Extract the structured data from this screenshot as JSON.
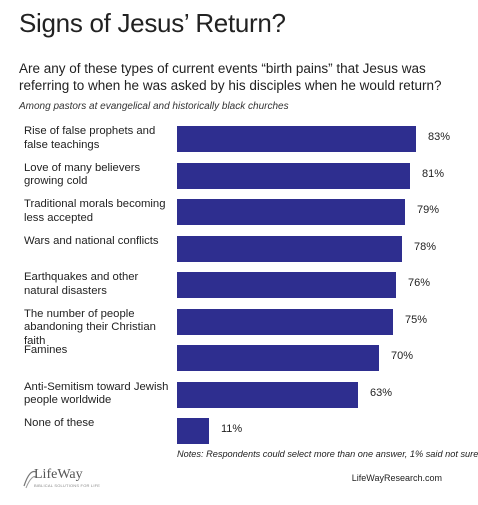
{
  "header": {
    "title": "Signs of Jesus’ Return?",
    "question": "Are any of these types of current events “birth pains” that Jesus was referring to when he was asked by his disciples when he would return?",
    "subtitle": "Among pastors at evangelical and historically black churches"
  },
  "chart_data": {
    "type": "bar",
    "orientation": "horizontal",
    "categories": [
      "Rise of false prophets and false teachings",
      "Love of many believers growing cold",
      "Traditional morals becoming less accepted",
      "Wars and national conflicts",
      "Earthquakes and other natural disasters",
      "The number of people abandoning their Christian faith",
      "Famines",
      "Anti-Semitism toward Jewish people worldwide",
      "None of these"
    ],
    "values": [
      83,
      81,
      79,
      78,
      76,
      75,
      70,
      63,
      11
    ],
    "value_labels": [
      "83%",
      "81%",
      "79%",
      "78%",
      "76%",
      "75%",
      "70%",
      "63%",
      "11%"
    ],
    "unit": "%",
    "xlim": [
      0,
      100
    ],
    "grid": false,
    "bar_color": "#2e2e8f"
  },
  "footer": {
    "note": "Notes: Respondents could select more than one answer, 1% said not sure",
    "logo_text": "LifeWay",
    "logo_tagline": "BIBLICAL SOLUTIONS FOR LIFE",
    "site": "LifeWayResearch.com"
  }
}
